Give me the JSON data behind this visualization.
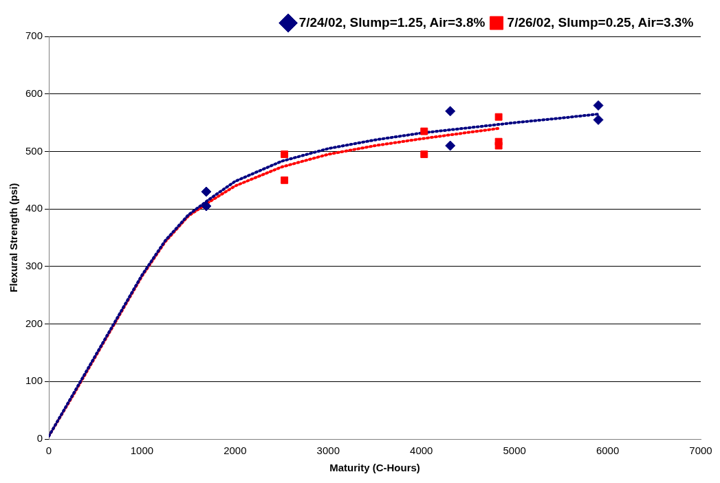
{
  "chart_data": {
    "type": "scatter",
    "xlabel": "Maturity (C-Hours)",
    "ylabel": "Flexural Strength (psi)",
    "xlim": [
      0,
      7000
    ],
    "xticks": [
      0,
      1000,
      2000,
      3000,
      4000,
      5000,
      6000,
      7000
    ],
    "ylim": [
      0,
      700
    ],
    "yticks": [
      0,
      100,
      200,
      300,
      400,
      500,
      600,
      700
    ],
    "grid": "y",
    "legend": "top right",
    "series": [
      {
        "name": "7/24/02, Slump=1.25, Air=3.8%",
        "color": "#000080",
        "marker": "diamond",
        "x": [
          1690,
          1690,
          4310,
          4310,
          5900,
          5900
        ],
        "values": [
          430,
          405,
          570,
          510,
          580,
          555
        ]
      },
      {
        "name": "7/26/02, Slump=0.25, Air=3.3%",
        "color": "#ff0000",
        "marker": "square",
        "x": [
          2530,
          2530,
          4030,
          4030,
          4830,
          4830,
          4830
        ],
        "values": [
          495,
          450,
          535,
          495,
          560,
          517,
          510
        ]
      },
      {
        "type": "line",
        "color": "#000080",
        "marker": "none",
        "line_style": "dotted",
        "x": [
          0,
          250,
          500,
          750,
          1000,
          1250,
          1500,
          1750,
          2000,
          2500,
          3000,
          3500,
          4000,
          4500,
          5000,
          5500,
          5900
        ],
        "values": [
          5,
          75,
          145,
          215,
          285,
          345,
          390,
          420,
          448,
          483,
          505,
          520,
          532,
          541,
          550,
          558,
          565
        ]
      },
      {
        "type": "line",
        "color": "#ff0000",
        "marker": "none",
        "line_style": "dotted",
        "x": [
          0,
          250,
          500,
          750,
          1000,
          1250,
          1500,
          1750,
          2000,
          2500,
          3000,
          3500,
          4000,
          4500,
          4830
        ],
        "values": [
          5,
          73,
          143,
          213,
          283,
          343,
          388,
          415,
          440,
          473,
          495,
          510,
          522,
          533,
          540
        ]
      }
    ]
  }
}
